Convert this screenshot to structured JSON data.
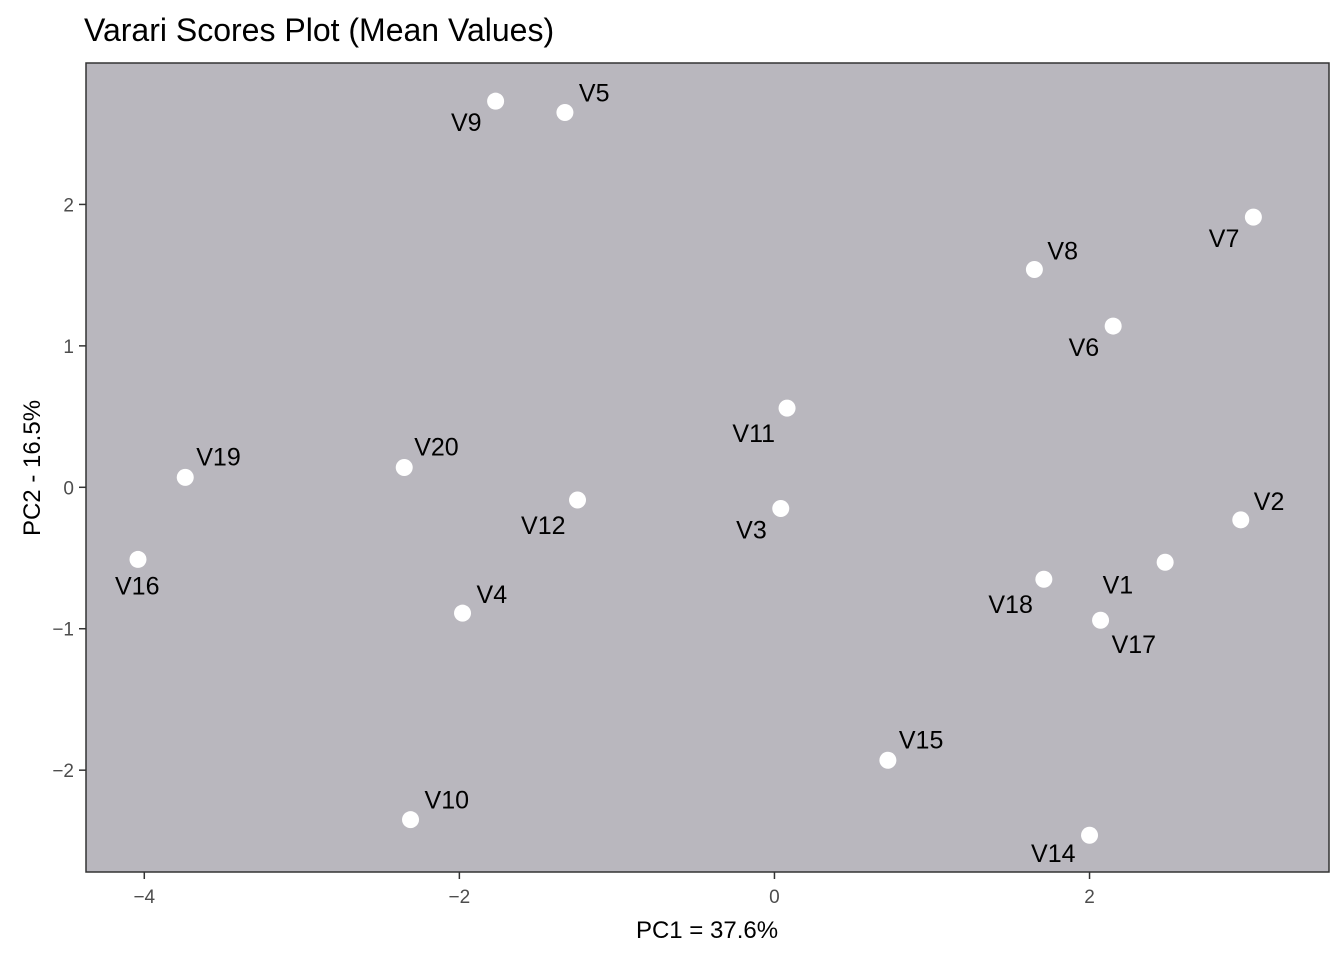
{
  "chart_data": {
    "type": "scatter",
    "title": "Varari Scores Plot (Mean Values)",
    "xlabel": "PC1 = 37.6%",
    "ylabel": "PC2 - 16.5%",
    "xlim": [
      -4.37,
      3.52
    ],
    "ylim": [
      -2.72,
      3.0
    ],
    "x_ticks": [
      -4,
      -2,
      0,
      2
    ],
    "y_ticks": [
      -2,
      -1,
      0,
      1,
      2
    ],
    "grid": false,
    "legend": "none",
    "colors": {
      "panel": "#b9b7be",
      "point": "#ffffff",
      "panel_border": "#333333"
    },
    "points": [
      {
        "label": "V1",
        "x": 2.48,
        "y": -0.53
      },
      {
        "label": "V2",
        "x": 2.96,
        "y": -0.23
      },
      {
        "label": "V3",
        "x": 0.04,
        "y": -0.15
      },
      {
        "label": "V4",
        "x": -1.98,
        "y": -0.89
      },
      {
        "label": "V5",
        "x": -1.33,
        "y": 2.65
      },
      {
        "label": "V6",
        "x": 2.15,
        "y": 1.14
      },
      {
        "label": "V7",
        "x": 3.04,
        "y": 1.91
      },
      {
        "label": "V8",
        "x": 1.65,
        "y": 1.54
      },
      {
        "label": "V9",
        "x": -1.77,
        "y": 2.73
      },
      {
        "label": "V10",
        "x": -2.31,
        "y": -2.35
      },
      {
        "label": "V11",
        "x": 0.08,
        "y": 0.56
      },
      {
        "label": "V12",
        "x": -1.25,
        "y": -0.09
      },
      {
        "label": "V14",
        "x": 2.0,
        "y": -2.46
      },
      {
        "label": "V15",
        "x": 0.72,
        "y": -1.93
      },
      {
        "label": "V16",
        "x": -4.04,
        "y": -0.51
      },
      {
        "label": "V17",
        "x": 2.07,
        "y": -0.94
      },
      {
        "label": "V18",
        "x": 1.71,
        "y": -0.65
      },
      {
        "label": "V19",
        "x": -3.74,
        "y": 0.07
      },
      {
        "label": "V20",
        "x": -2.35,
        "y": 0.14
      }
    ]
  }
}
